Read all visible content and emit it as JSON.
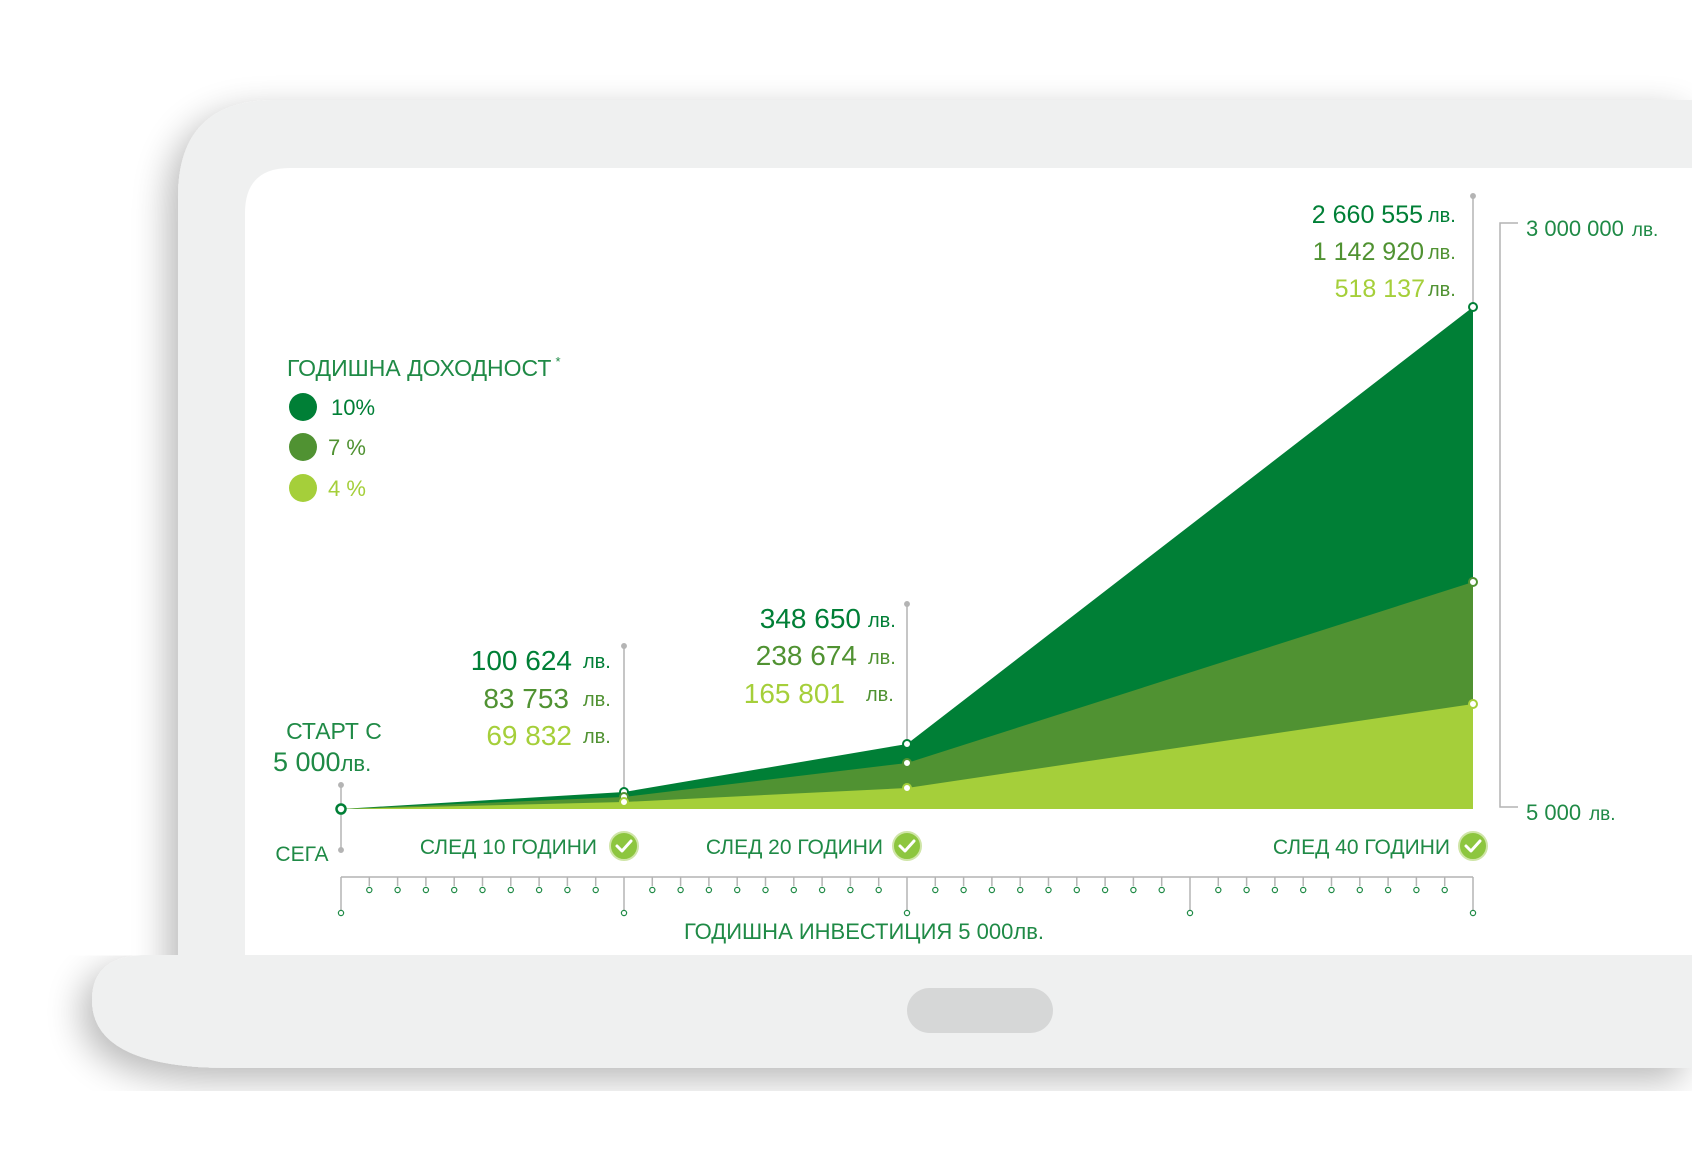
{
  "colors": {
    "high": "#007f36",
    "mid": "#509232",
    "low": "#a5cf3a",
    "axis": "#b4b4b4",
    "laptop_body": "#eff0f0",
    "screen": "#ffffff",
    "trackpad": "#d6d7d7"
  },
  "currency": "лв.",
  "legend": {
    "title": "ГОДИШНА ДОХОДНОСТ",
    "marker": "*",
    "items": [
      {
        "label": "10%",
        "color": "#007f36"
      },
      {
        "label": "7 %",
        "color": "#509232"
      },
      {
        "label": "4 %",
        "color": "#a5cf3a"
      }
    ]
  },
  "start": {
    "title": "СТАРТ С",
    "amount": "5 000",
    "unit": "лв."
  },
  "right_axis": {
    "top": {
      "amount": "3 000 000",
      "unit": "лв."
    },
    "bottom": {
      "amount": "5 000",
      "unit": "лв."
    }
  },
  "milestones": [
    {
      "label": "СЕГА",
      "check": false
    },
    {
      "label": "СЛЕД 10 ГОДИНИ",
      "check": true
    },
    {
      "label": "СЛЕД 20 ГОДИНИ",
      "check": true
    },
    {
      "label": "СЛЕД 40 ГОДИНИ",
      "check": true
    }
  ],
  "callouts": [
    {
      "values": [
        "100 624",
        "83 753",
        "69 832"
      ],
      "unit": "лв."
    },
    {
      "values": [
        "348 650",
        "238 674",
        "165 801"
      ],
      "unit": "лв."
    },
    {
      "values": [
        "2 660 555",
        "1 142 920",
        "518 137"
      ],
      "unit": "лв."
    }
  ],
  "footer": {
    "prefix": "ГОДИШНА ИНВЕСТИЦИЯ",
    "amount": "5 000",
    "unit": "лв."
  },
  "chart_data": {
    "type": "area",
    "x": [
      0,
      10,
      20,
      40
    ],
    "x_tick_labels": [
      "СЕГА",
      "СЛЕД 10 ГОДИНИ",
      "СЛЕД 20 ГОДИНИ",
      "СЛЕД 40 ГОДИНИ"
    ],
    "series": [
      {
        "name": "10%",
        "values": [
          5000,
          100624,
          348650,
          2660555
        ],
        "color": "#007f36"
      },
      {
        "name": "7 %",
        "values": [
          5000,
          83753,
          238674,
          1142920
        ],
        "color": "#509232"
      },
      {
        "name": "4 %",
        "values": [
          5000,
          69832,
          165801,
          518137
        ],
        "color": "#a5cf3a"
      }
    ],
    "ylim": [
      5000,
      3000000
    ],
    "grid": false,
    "legend": "top-left"
  }
}
